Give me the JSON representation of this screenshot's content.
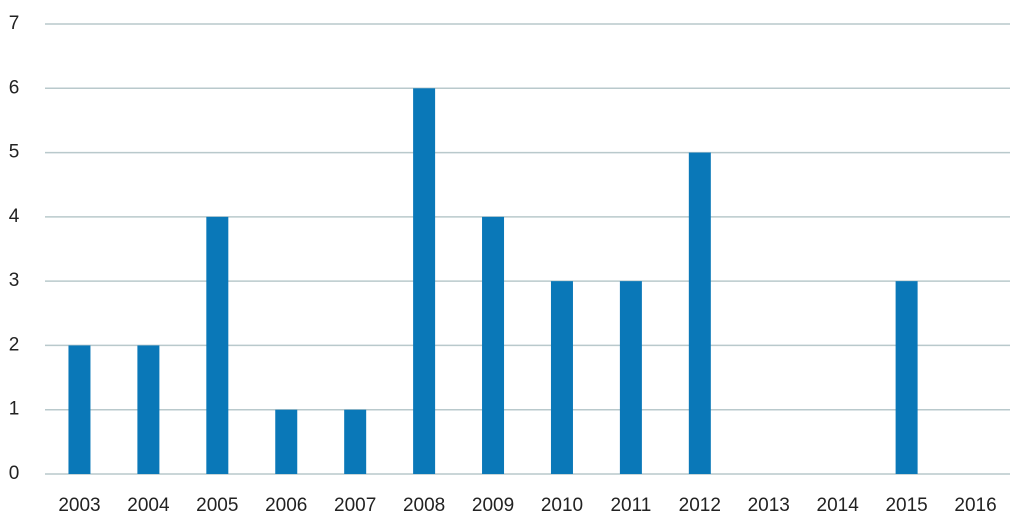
{
  "chart_data": {
    "type": "bar",
    "categories": [
      "2003",
      "2004",
      "2005",
      "2006",
      "2007",
      "2008",
      "2009",
      "2010",
      "2011",
      "2012",
      "2013",
      "2014",
      "2015",
      "2016"
    ],
    "values": [
      2,
      2,
      4,
      1,
      1,
      6,
      4,
      3,
      3,
      5,
      0,
      0,
      3,
      0
    ],
    "color": "#0a78b8",
    "ylim": [
      0,
      7
    ],
    "yticks": [
      0,
      1,
      2,
      3,
      4,
      5,
      6,
      7
    ],
    "grid": true
  }
}
